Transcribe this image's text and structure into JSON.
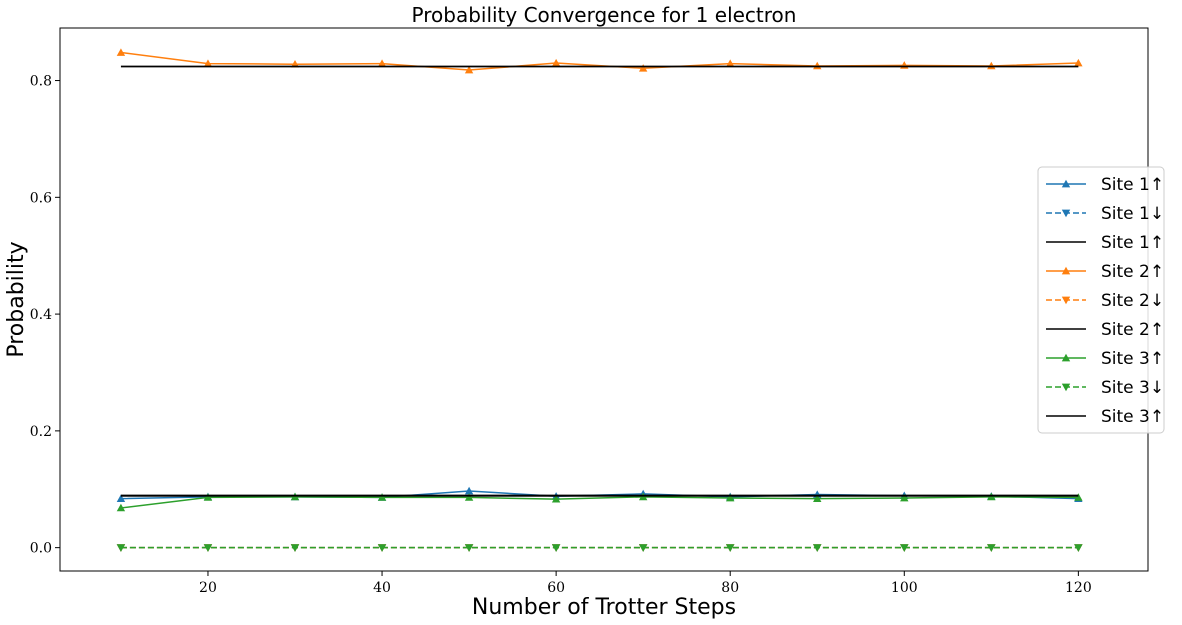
{
  "chart_data": {
    "type": "line",
    "title": "Probability Convergence for 1 electron",
    "xlabel": "Number of Trotter Steps",
    "ylabel": "Probability",
    "xlim": [
      3,
      128
    ],
    "ylim": [
      -0.04,
      0.89
    ],
    "xticks": [
      20,
      40,
      60,
      80,
      100,
      120
    ],
    "yticks": [
      0.0,
      0.2,
      0.4,
      0.6,
      0.8
    ],
    "ytick_labels": [
      "0.0",
      "0.2",
      "0.4",
      "0.6",
      "0.8"
    ],
    "grid": false,
    "legend_position": "center-right",
    "x": [
      10,
      20,
      30,
      40,
      50,
      60,
      70,
      80,
      90,
      100,
      110,
      120
    ],
    "series": [
      {
        "name": "Site 1↑",
        "color": "#1f77b4",
        "linestyle": "solid",
        "marker": "triangle-up",
        "values": [
          0.084,
          0.087,
          0.087,
          0.086,
          0.097,
          0.088,
          0.092,
          0.087,
          0.091,
          0.089,
          0.088,
          0.084
        ]
      },
      {
        "name": "Site 1↓",
        "color": "#1f77b4",
        "linestyle": "dashed",
        "marker": "triangle-down",
        "values": [
          0.0,
          0.0,
          0.0,
          0.0,
          0.0,
          0.0,
          0.0,
          0.0,
          0.0,
          0.0,
          0.0,
          0.0
        ]
      },
      {
        "name": "Site 1↑",
        "color": "#000000",
        "linestyle": "solid",
        "marker": "none",
        "x": [
          10,
          120
        ],
        "values": [
          0.089,
          0.089
        ]
      },
      {
        "name": "Site 2↑",
        "color": "#ff7f0e",
        "linestyle": "solid",
        "marker": "triangle-up",
        "values": [
          0.848,
          0.829,
          0.828,
          0.829,
          0.818,
          0.83,
          0.821,
          0.829,
          0.825,
          0.826,
          0.825,
          0.83
        ]
      },
      {
        "name": "Site 2↓",
        "color": "#ff7f0e",
        "linestyle": "dashed",
        "marker": "triangle-down",
        "values": [
          0.0,
          0.0,
          0.0,
          0.0,
          0.0,
          0.0,
          0.0,
          0.0,
          0.0,
          0.0,
          0.0,
          0.0
        ]
      },
      {
        "name": "Site 2↑",
        "color": "#000000",
        "linestyle": "solid",
        "marker": "none",
        "x": [
          10,
          120
        ],
        "values": [
          0.824,
          0.824
        ]
      },
      {
        "name": "Site 3↑",
        "color": "#2ca02c",
        "linestyle": "solid",
        "marker": "triangle-up",
        "values": [
          0.068,
          0.086,
          0.087,
          0.086,
          0.086,
          0.083,
          0.087,
          0.085,
          0.084,
          0.085,
          0.087,
          0.086
        ]
      },
      {
        "name": "Site 3↓",
        "color": "#2ca02c",
        "linestyle": "dashed",
        "marker": "triangle-down",
        "values": [
          0.0,
          0.0,
          0.0,
          0.0,
          0.0,
          0.0,
          0.0,
          0.0,
          0.0,
          0.0,
          0.0,
          0.0
        ]
      },
      {
        "name": "Site 3↑",
        "color": "#000000",
        "linestyle": "solid",
        "marker": "none",
        "x": [
          10,
          120
        ],
        "values": [
          0.089,
          0.089
        ]
      }
    ]
  }
}
